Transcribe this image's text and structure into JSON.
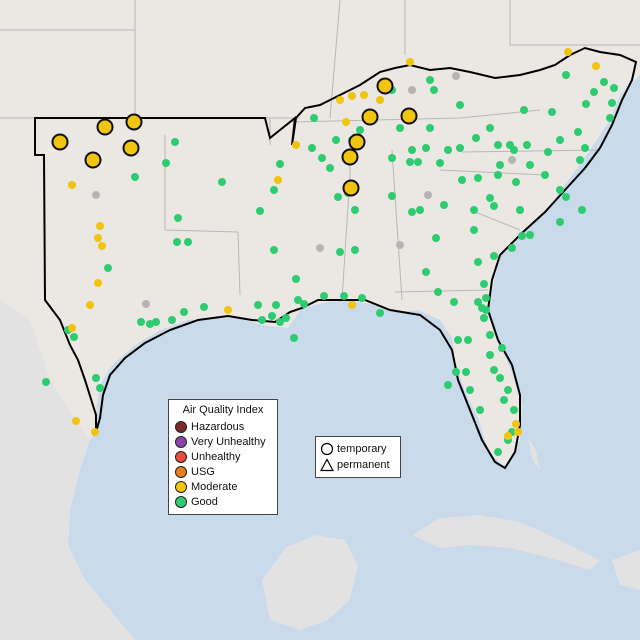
{
  "legend_aqi": {
    "title": "Air Quality Index",
    "items": [
      {
        "label": "Hazardous",
        "color": "#7e2a2a"
      },
      {
        "label": "Very Unhealthy",
        "color": "#8e44ad"
      },
      {
        "label": "Unhealthy",
        "color": "#e74c3c"
      },
      {
        "label": "USG",
        "color": "#e67e22"
      },
      {
        "label": "Moderate",
        "color": "#f1c40f"
      },
      {
        "label": "Good",
        "color": "#2ecc71"
      }
    ]
  },
  "legend_shape": {
    "items": [
      {
        "label": "temporary",
        "shape": "circle"
      },
      {
        "label": "permanent",
        "shape": "triangle"
      }
    ]
  },
  "colors": {
    "water": "#c9daea",
    "land": "#ebe8e4",
    "land_outside": "#e2e2e2",
    "state_border": "#b8b8b8",
    "region_outline": "#000000",
    "no_data": "#b5b5b5"
  }
}
